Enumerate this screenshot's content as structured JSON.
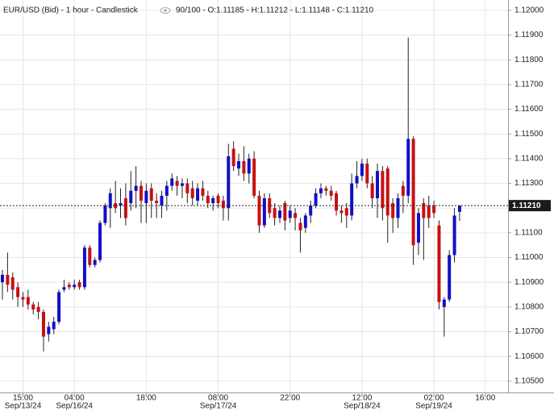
{
  "chart_data": {
    "type": "candlestick",
    "title": "EUR/USD (Bid) - 1 hour - Candlestick",
    "subtitle": "90/100 - O:1.11185 - H:1.11212 - L:1.11148 - C:1.11210",
    "categories": [
      null,
      null,
      null,
      null,
      "15:00",
      null,
      null,
      null,
      null,
      null,
      null,
      null,
      null,
      null,
      "04:00",
      null,
      null,
      null,
      null,
      null,
      null,
      null,
      null,
      null,
      null,
      null,
      null,
      null,
      "18:00",
      null,
      null,
      null,
      null,
      null,
      null,
      null,
      null,
      null,
      null,
      null,
      null,
      null,
      "08:00",
      null,
      null,
      null,
      null,
      null,
      null,
      null,
      null,
      null,
      null,
      null,
      null,
      null,
      "22:00",
      null,
      null,
      null,
      null,
      null,
      null,
      null,
      null,
      null,
      null,
      null,
      null,
      null,
      "12:00",
      null,
      null,
      null,
      null,
      null,
      null,
      null,
      null,
      null,
      null,
      null,
      null,
      null,
      "02:00",
      null,
      null,
      null,
      null,
      null,
      null,
      null,
      null,
      null,
      "16:00"
    ],
    "category_dates": [
      null,
      null,
      null,
      null,
      "Sep/13/24",
      null,
      null,
      null,
      null,
      null,
      null,
      null,
      null,
      null,
      "Sep/16/24",
      null,
      null,
      null,
      null,
      null,
      null,
      null,
      null,
      null,
      null,
      null,
      null,
      null,
      null,
      null,
      null,
      null,
      null,
      null,
      null,
      null,
      null,
      null,
      null,
      null,
      null,
      null,
      "Sep/17/24",
      null,
      null,
      null,
      null,
      null,
      null,
      null,
      null,
      null,
      null,
      null,
      null,
      null,
      null,
      null,
      null,
      null,
      null,
      null,
      null,
      null,
      null,
      null,
      null,
      null,
      null,
      null,
      "Sep/18/24",
      null,
      null,
      null,
      null,
      null,
      null,
      null,
      null,
      null,
      null,
      null,
      null,
      null,
      "Sep/19/24",
      null,
      null,
      null,
      null,
      null,
      null,
      null,
      null,
      null,
      null
    ],
    "open": [
      1.109,
      1.1093,
      1.1092,
      1.1088,
      1.1084,
      1.1084,
      1.1081,
      1.108,
      1.1078,
      1.1069,
      1.1071,
      1.1074,
      1.1087,
      1.1089,
      1.1088,
      1.109,
      1.1088,
      1.1104,
      1.1097,
      1.1099,
      1.1114,
      1.112,
      1.1122,
      1.1121,
      1.1124,
      1.1122,
      1.1127,
      1.1129,
      1.1122,
      1.1128,
      1.1123,
      1.1121,
      1.1125,
      1.1129,
      1.1131,
      1.1129,
      1.113,
      1.1128,
      1.1123,
      1.1128,
      1.1125,
      1.1122,
      1.1125,
      1.1123,
      1.112,
      1.1144,
      1.1136,
      1.1139,
      1.1134,
      1.114,
      1.1125,
      1.1113,
      1.1124,
      1.112,
      1.1116,
      1.1122,
      1.1116,
      1.1118,
      1.1114,
      1.1112,
      1.1117,
      1.1121,
      1.1126,
      1.1128,
      1.1127,
      1.1126,
      1.1119,
      1.112,
      1.1117,
      1.113,
      1.1133,
      1.1138,
      1.113,
      1.1124,
      1.1135,
      1.1136,
      1.1122,
      1.1116,
      1.1129,
      1.1125,
      1.1148,
      1.1106,
      1.1122,
      1.1121,
      1.1121,
      1.1113,
      1.108,
      1.1083,
      1.1101,
      1.11185,
      null,
      null,
      null,
      null,
      null
    ],
    "high": [
      1.1095,
      1.1102,
      1.1094,
      1.109,
      1.1086,
      1.1087,
      1.1082,
      1.1082,
      1.1079,
      1.1074,
      1.1076,
      1.1087,
      1.1091,
      1.109,
      1.1091,
      1.1091,
      1.1105,
      1.1105,
      1.11,
      1.1115,
      1.1122,
      1.1128,
      1.1131,
      1.1128,
      1.113,
      1.1135,
      1.1137,
      1.1131,
      1.113,
      1.113,
      1.1126,
      1.1127,
      1.1131,
      1.1134,
      1.1133,
      1.1132,
      1.1132,
      1.1131,
      1.113,
      1.1131,
      1.1127,
      1.1125,
      1.1126,
      1.1125,
      1.1146,
      1.1147,
      1.1142,
      1.1145,
      1.1142,
      1.1143,
      1.1127,
      1.1126,
      1.1126,
      1.1122,
      1.1121,
      1.1123,
      1.1121,
      1.112,
      1.1116,
      1.1118,
      1.1123,
      1.1128,
      1.113,
      1.1129,
      1.1129,
      1.1127,
      1.1121,
      1.1122,
      1.1134,
      1.1139,
      1.114,
      1.114,
      1.1133,
      1.1138,
      1.1137,
      1.1137,
      1.1124,
      1.1126,
      1.1131,
      1.1189,
      1.1149,
      1.112,
      1.1124,
      1.1125,
      1.1123,
      1.1115,
      1.1084,
      1.1103,
      1.112,
      1.11212,
      null,
      null,
      null,
      null,
      null
    ],
    "low": [
      1.1083,
      1.1086,
      1.1083,
      1.108,
      1.108,
      1.1079,
      1.1077,
      1.1075,
      1.1062,
      1.1066,
      1.1069,
      1.1073,
      1.1086,
      1.1087,
      1.1087,
      1.1087,
      1.1087,
      1.1096,
      1.1096,
      1.1098,
      1.1113,
      1.1112,
      1.1118,
      1.1116,
      1.1113,
      1.1119,
      1.112,
      1.1114,
      1.1114,
      1.1116,
      1.1116,
      1.1116,
      1.1119,
      1.1127,
      1.1125,
      1.1124,
      1.1122,
      1.1121,
      1.1121,
      1.1123,
      1.112,
      1.1119,
      1.112,
      1.1115,
      1.1115,
      1.1135,
      1.1133,
      1.1131,
      1.113,
      1.1124,
      1.111,
      1.1112,
      1.1116,
      1.1113,
      1.1114,
      1.1111,
      1.1114,
      1.1111,
      1.1102,
      1.111,
      1.1114,
      1.112,
      1.1124,
      1.1125,
      1.1123,
      1.1117,
      1.1114,
      1.1112,
      1.1115,
      1.1128,
      1.1131,
      1.1128,
      1.112,
      1.1116,
      1.1115,
      1.1106,
      1.111,
      1.1112,
      1.1118,
      1.1122,
      1.1097,
      1.1101,
      1.1099,
      1.1112,
      1.1116,
      1.1079,
      1.1068,
      1.1082,
      1.1098,
      1.11148,
      null,
      null,
      null,
      null,
      null
    ],
    "close": [
      1.1093,
      1.1089,
      1.1087,
      1.1084,
      1.1083,
      1.1081,
      1.1079,
      1.1078,
      1.1068,
      1.1072,
      1.1074,
      1.1086,
      1.1088,
      1.1088,
      1.1089,
      1.1088,
      1.1104,
      1.1097,
      1.1099,
      1.1114,
      1.1121,
      1.1126,
      1.112,
      1.1122,
      1.1116,
      1.1127,
      1.1129,
      1.1123,
      1.1127,
      1.1123,
      1.1122,
      1.1125,
      1.1129,
      1.1132,
      1.1129,
      1.113,
      1.1126,
      1.1124,
      1.1128,
      1.1125,
      1.1122,
      1.1124,
      1.1122,
      1.112,
      1.1141,
      1.1137,
      1.1139,
      1.1134,
      1.114,
      1.1125,
      1.1113,
      1.1124,
      1.1118,
      1.1116,
      1.1119,
      1.1115,
      1.1119,
      1.1116,
      1.1111,
      1.1117,
      1.1121,
      1.1126,
      1.1128,
      1.1127,
      1.1125,
      1.1119,
      1.1118,
      1.1117,
      1.113,
      1.1133,
      1.1138,
      1.113,
      1.1124,
      1.1135,
      1.112,
      1.1117,
      1.1116,
      1.1124,
      1.1125,
      1.1148,
      1.1105,
      1.1118,
      1.1116,
      1.1116,
      1.1118,
      1.1082,
      1.1083,
      1.1101,
      1.1117,
      1.1121,
      null,
      null,
      null,
      null,
      null
    ],
    "up_color": "#1010c8",
    "down_color": "#c81010",
    "last_price": {
      "value": 1.1121,
      "label": "1.11210"
    },
    "ylim": [
      1.10454,
      1.12042
    ],
    "yticks": [
      {
        "value": 1.105,
        "label": "1.10500"
      },
      {
        "value": 1.106,
        "label": "1.10600"
      },
      {
        "value": 1.107,
        "label": "1.10700"
      },
      {
        "value": 1.108,
        "label": "1.10800"
      },
      {
        "value": 1.109,
        "label": "1.10900"
      },
      {
        "value": 1.11,
        "label": "1.11000"
      },
      {
        "value": 1.111,
        "label": "1.11100"
      },
      {
        "value": 1.112,
        "label": "1.11200"
      },
      {
        "value": 1.113,
        "label": "1.11300"
      },
      {
        "value": 1.114,
        "label": "1.11400"
      },
      {
        "value": 1.115,
        "label": "1.11500"
      },
      {
        "value": 1.116,
        "label": "1.11600"
      },
      {
        "value": 1.117,
        "label": "1.11700"
      },
      {
        "value": 1.118,
        "label": "1.11800"
      },
      {
        "value": 1.119,
        "label": "1.11900"
      },
      {
        "value": 1.12,
        "label": "1.12000"
      }
    ],
    "grid": true
  }
}
